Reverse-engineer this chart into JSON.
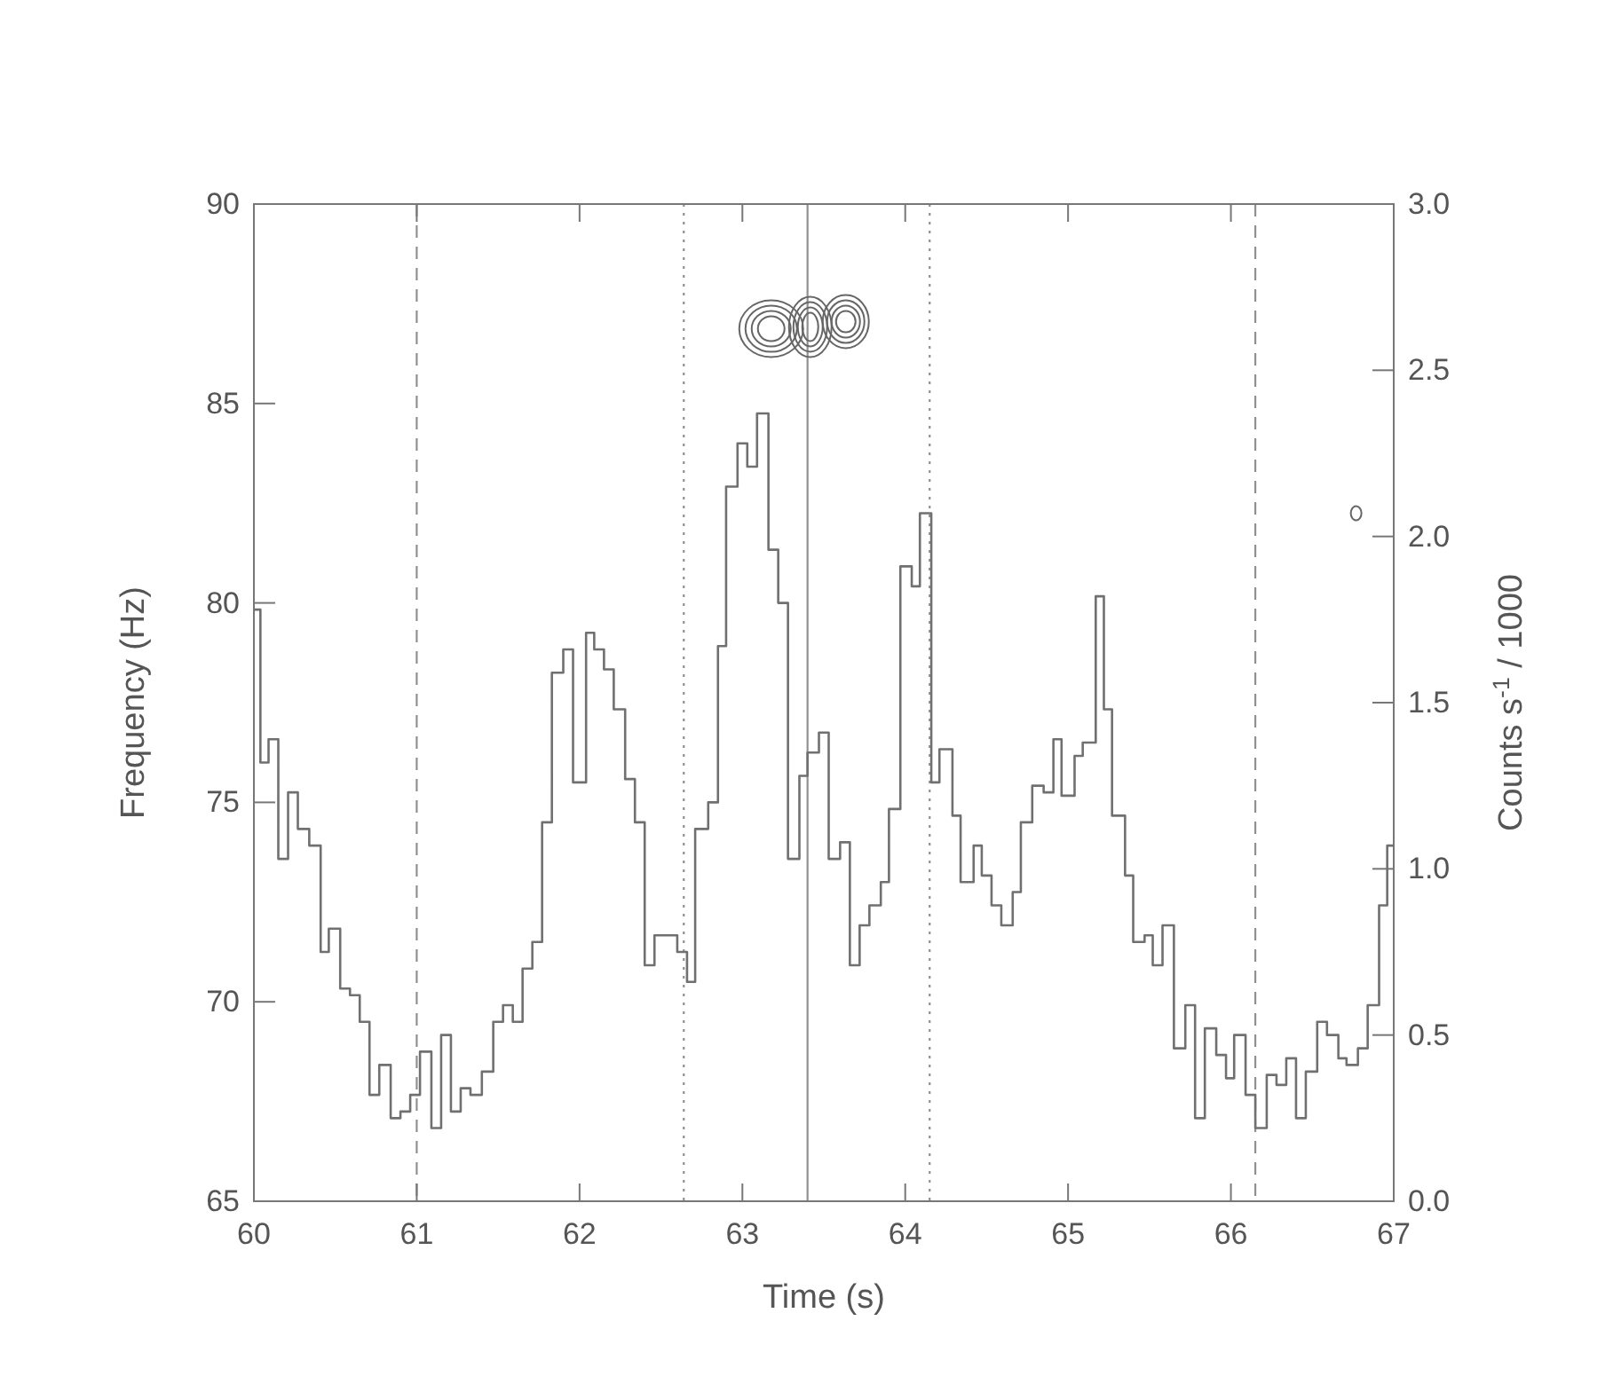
{
  "chart_data": {
    "type": "step",
    "xlabel": "Time (s)",
    "ylabel": "Frequency (Hz)",
    "y2label": "Counts s$^{-1}$ / 1000",
    "xlim": [
      60,
      67
    ],
    "xticks": [
      60,
      61,
      62,
      63,
      64,
      65,
      66,
      67
    ],
    "ylim": [
      65,
      90
    ],
    "yticks": [
      65,
      70,
      75,
      80,
      85,
      90
    ],
    "y2lim": [
      0,
      3
    ],
    "y2ticks": [
      {
        "value": 0,
        "label": "0.0"
      },
      {
        "value": 0.5,
        "label": "0.5"
      },
      {
        "value": 1,
        "label": "1.0"
      },
      {
        "value": 1.5,
        "label": "1.5"
      },
      {
        "value": 2,
        "label": "2.0"
      },
      {
        "value": 2.5,
        "label": "2.5"
      },
      {
        "value": 3,
        "label": "3.0"
      }
    ],
    "series": [
      {
        "axis": "y2",
        "color": "#707070",
        "x": [
          60.0,
          60.04,
          60.09,
          60.15,
          60.21,
          60.27,
          60.34,
          60.41,
          60.46,
          60.53,
          60.59,
          60.65,
          60.71,
          60.77,
          60.84,
          60.9,
          60.96,
          61.02,
          61.09,
          61.15,
          61.21,
          61.27,
          61.33,
          61.4,
          61.47,
          61.53,
          61.59,
          61.65,
          61.71,
          61.77,
          61.83,
          61.9,
          61.96,
          62.04,
          62.09,
          62.15,
          62.21,
          62.28,
          62.34,
          62.4,
          62.46,
          62.6,
          62.66,
          62.71,
          62.79,
          62.85,
          62.9,
          62.97,
          63.03,
          63.09,
          63.16,
          63.22,
          63.28,
          63.35,
          63.4,
          63.47,
          63.53,
          63.6,
          63.66,
          63.72,
          63.78,
          63.85,
          63.9,
          63.97,
          64.04,
          64.09,
          64.16,
          64.21,
          64.29,
          64.34,
          64.42,
          64.47,
          64.53,
          64.59,
          64.66,
          64.71,
          64.78,
          64.85,
          64.91,
          64.96,
          65.04,
          65.09,
          65.17,
          65.22,
          65.27,
          65.35,
          65.4,
          65.47,
          65.52,
          65.58,
          65.65,
          65.72,
          65.78,
          65.84,
          65.91,
          65.97,
          66.02,
          66.09,
          66.15,
          66.22,
          66.28,
          66.34,
          66.4,
          66.46,
          66.53,
          66.59,
          66.66,
          66.71,
          66.78,
          66.84,
          66.91,
          66.96,
          67.0
        ],
        "values": [
          1.78,
          1.32,
          1.39,
          1.03,
          1.23,
          1.12,
          1.07,
          0.75,
          0.82,
          0.64,
          0.62,
          0.54,
          0.32,
          0.41,
          0.25,
          0.27,
          0.32,
          0.45,
          0.22,
          0.5,
          0.27,
          0.34,
          0.32,
          0.39,
          0.54,
          0.59,
          0.54,
          0.7,
          0.78,
          1.14,
          1.59,
          1.66,
          1.26,
          1.71,
          1.66,
          1.6,
          1.48,
          1.27,
          1.14,
          0.71,
          0.8,
          0.75,
          0.66,
          1.12,
          1.2,
          1.67,
          2.15,
          2.28,
          2.21,
          2.37,
          1.96,
          1.8,
          1.03,
          1.28,
          1.35,
          1.41,
          1.03,
          1.08,
          0.71,
          0.83,
          0.89,
          0.96,
          1.18,
          1.91,
          1.85,
          2.07,
          1.26,
          1.36,
          1.16,
          0.96,
          1.07,
          0.98,
          0.89,
          0.83,
          0.93,
          1.14,
          1.25,
          1.23,
          1.39,
          1.22,
          1.34,
          1.38,
          1.82,
          1.48,
          1.16,
          0.98,
          0.78,
          0.8,
          0.71,
          0.83,
          0.46,
          0.59,
          0.25,
          0.52,
          0.44,
          0.37,
          0.5,
          0.32,
          0.22,
          0.38,
          0.35,
          0.43,
          0.25,
          0.39,
          0.54,
          0.5,
          0.43,
          0.41,
          0.46,
          0.59,
          0.89,
          1.07,
          1.07
        ]
      }
    ],
    "ref_lines": [
      {
        "axis": "x",
        "value": 61.0,
        "line_style": "dashed",
        "color": "#909090"
      },
      {
        "axis": "x",
        "value": 62.64,
        "line_style": "dotted",
        "color": "#909090"
      },
      {
        "axis": "x",
        "value": 63.4,
        "line_style": "solid",
        "color": "#909090"
      },
      {
        "axis": "x",
        "value": 64.15,
        "line_style": "dotted",
        "color": "#909090"
      },
      {
        "axis": "x",
        "value": 66.15,
        "line_style": "dashed",
        "color": "#909090"
      }
    ]
  }
}
